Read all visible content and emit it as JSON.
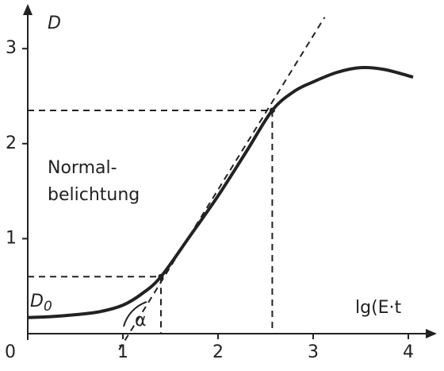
{
  "chart_data": {
    "type": "line",
    "y_label": "D",
    "x_label": "lg(E·t",
    "annotations": [
      "Normal-",
      "belichtung"
    ],
    "d0_label": {
      "text": "D",
      "sub": "0"
    },
    "angle_label": "α",
    "x": [
      0,
      0.25,
      0.5,
      0.75,
      1,
      1.2,
      1.4,
      1.7,
      2,
      2.3,
      2.57,
      2.8,
      3,
      3.25,
      3.5,
      3.75,
      4.05
    ],
    "series": [
      {
        "color": "#222222",
        "values": [
          0.17,
          0.18,
          0.2,
          0.23,
          0.3,
          0.42,
          0.6,
          1.02,
          1.45,
          1.92,
          2.35,
          2.55,
          2.65,
          2.75,
          2.8,
          2.78,
          2.7
        ]
      }
    ],
    "markers": [
      {
        "x": 1.4,
        "y": 0.6
      },
      {
        "x": 2.57,
        "y": 2.35
      }
    ],
    "tangent": {
      "x": [
        0.96,
        3.12
      ],
      "y": [
        -0.17,
        3.33
      ]
    },
    "xlim": [
      0,
      4.3
    ],
    "ylim": [
      0,
      3.47
    ],
    "xticks": [
      0,
      1,
      2,
      3,
      4
    ],
    "yticks": [
      1,
      2,
      3
    ]
  }
}
